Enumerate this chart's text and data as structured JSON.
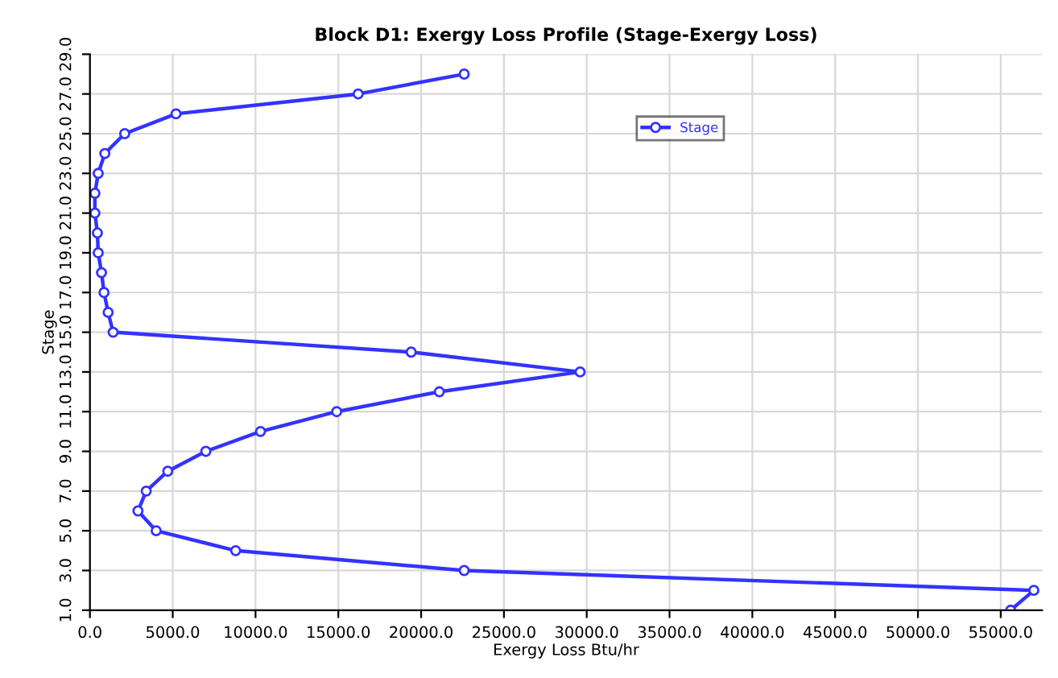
{
  "chart_data": {
    "type": "line",
    "title": "Block D1: Exergy Loss Profile (Stage-Exergy Loss)",
    "xlabel": "Exergy Loss Btu/hr",
    "ylabel": "Stage",
    "series": [
      {
        "name": "Stage",
        "color": "#3333ff",
        "x": [
          55600,
          57000,
          22600,
          8800,
          4000,
          2900,
          3400,
          4700,
          7000,
          10300,
          14900,
          21100,
          29600,
          19400,
          1400,
          1100,
          850,
          700,
          500,
          450,
          300,
          300,
          500,
          900,
          2100,
          5200,
          16200,
          22600
        ],
        "values": [
          1,
          2,
          3,
          4,
          5,
          6,
          7,
          8,
          9,
          10,
          11,
          12,
          13,
          14,
          15,
          16,
          17,
          18,
          19,
          20,
          21,
          22,
          23,
          24,
          25,
          26,
          27,
          28
        ]
      }
    ],
    "xlim": [
      0,
      57500
    ],
    "ylim": [
      1,
      29
    ],
    "xticks": [
      {
        "value": 0,
        "label": "0.0"
      },
      {
        "value": 5000,
        "label": "5000.0"
      },
      {
        "value": 10000,
        "label": "10000.0"
      },
      {
        "value": 15000,
        "label": "15000.0"
      },
      {
        "value": 20000,
        "label": "20000.0"
      },
      {
        "value": 25000,
        "label": "25000.0"
      },
      {
        "value": 30000,
        "label": "30000.0"
      },
      {
        "value": 35000,
        "label": "35000.0"
      },
      {
        "value": 40000,
        "label": "40000.0"
      },
      {
        "value": 45000,
        "label": "45000.0"
      },
      {
        "value": 50000,
        "label": "50000.0"
      },
      {
        "value": 55000,
        "label": "55000.0"
      }
    ],
    "yticks": [
      {
        "value": 1,
        "label": "1.0"
      },
      {
        "value": 3,
        "label": "3.0"
      },
      {
        "value": 5,
        "label": "5.0"
      },
      {
        "value": 7,
        "label": "7.0"
      },
      {
        "value": 9,
        "label": "9.0"
      },
      {
        "value": 11,
        "label": "11.0"
      },
      {
        "value": 13,
        "label": "13.0"
      },
      {
        "value": 15,
        "label": "15.0"
      },
      {
        "value": 17,
        "label": "17.0"
      },
      {
        "value": 19,
        "label": "19.0"
      },
      {
        "value": 21,
        "label": "21.0"
      },
      {
        "value": 23,
        "label": "23.0"
      },
      {
        "value": 25,
        "label": "25.0"
      },
      {
        "value": 27,
        "label": "27.0"
      },
      {
        "value": 29,
        "label": "29.0"
      }
    ],
    "grid": true,
    "legend": "top",
    "marker": "circle",
    "line_style": "solid"
  }
}
